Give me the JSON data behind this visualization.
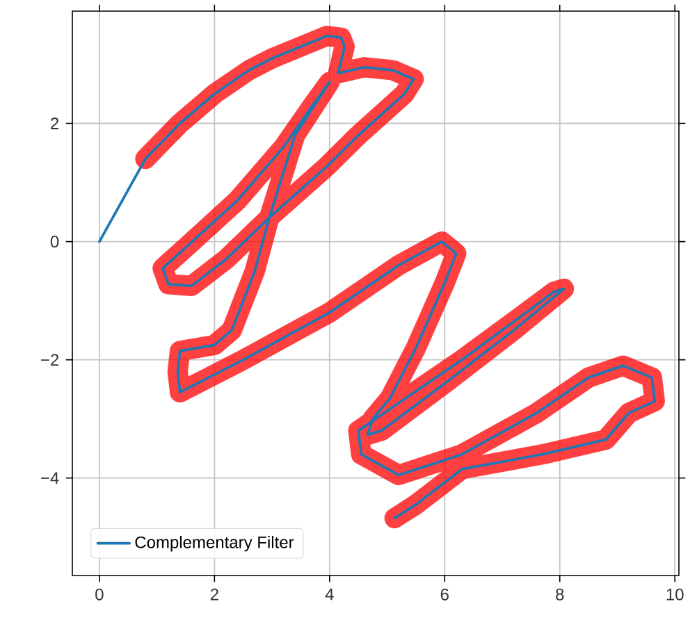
{
  "chart_data": {
    "type": "line",
    "series": [
      {
        "name": "Complementary Filter",
        "color": "#1f77b4",
        "x": [
          0,
          0.4,
          0.8,
          1.4,
          2.0,
          2.6,
          3.0,
          3.5,
          3.95,
          4.2,
          4.26,
          4.15,
          4.6,
          5.1,
          5.46,
          5.3,
          4.5,
          3.95,
          3.0,
          2.2,
          1.6,
          1.2,
          1.1,
          1.5,
          2.4,
          3.2,
          3.7,
          4.0,
          3.4,
          2.95,
          2.7,
          2.3,
          2.0,
          1.4,
          1.36,
          1.4,
          2.5,
          4.0,
          5.2,
          5.95,
          6.2,
          6.0,
          5.5,
          5.05,
          4.75,
          4.66,
          4.9,
          6.0,
          7.2,
          8.07,
          7.9,
          7.25,
          6.3,
          5.2,
          4.5,
          4.55,
          5.2,
          6.3,
          7.6,
          8.5,
          9.1,
          9.6,
          9.65,
          9.2,
          8.8,
          7.7,
          6.3,
          5.5,
          5.13
        ],
        "values": [
          0,
          0.7,
          1.4,
          2.0,
          2.5,
          2.9,
          3.1,
          3.3,
          3.48,
          3.45,
          3.3,
          2.85,
          2.95,
          2.9,
          2.75,
          2.5,
          1.8,
          1.27,
          0.45,
          -0.3,
          -0.75,
          -0.72,
          -0.45,
          -0.1,
          0.7,
          1.6,
          2.3,
          2.7,
          1.8,
          0.4,
          -0.5,
          -1.5,
          -1.75,
          -1.85,
          -2.2,
          -2.55,
          -2.0,
          -1.2,
          -0.4,
          0.0,
          -0.2,
          -0.7,
          -1.8,
          -2.65,
          -3.0,
          -3.27,
          -3.2,
          -2.4,
          -1.5,
          -0.8,
          -0.85,
          -1.32,
          -2.0,
          -2.73,
          -3.2,
          -3.6,
          -3.95,
          -3.6,
          -2.9,
          -2.3,
          -2.1,
          -2.3,
          -2.7,
          -2.9,
          -3.35,
          -3.6,
          -3.85,
          -4.45,
          -4.68
        ]
      },
      {
        "color": "#ff0000",
        "x": [
          0.8,
          1.4,
          2.0,
          2.6,
          3.0,
          3.5,
          3.95,
          4.2,
          4.26,
          4.15,
          4.6,
          5.1,
          5.46,
          5.3,
          4.5,
          3.95,
          3.0,
          2.2,
          1.6,
          1.2,
          1.1,
          1.5,
          2.4,
          3.2,
          3.7,
          4.0,
          3.4,
          2.95,
          2.7,
          2.3,
          2.0,
          1.4,
          1.36,
          1.4,
          2.5,
          4.0,
          5.2,
          5.95,
          6.2,
          6.0,
          5.5,
          5.05,
          4.75,
          4.66,
          4.9,
          6.0,
          7.2,
          8.07,
          7.9,
          7.25,
          6.3,
          5.2,
          4.5,
          4.55,
          5.2,
          6.3,
          7.6,
          8.5,
          9.1,
          9.6,
          9.65,
          9.2,
          8.8,
          7.7,
          6.3,
          5.5,
          5.13
        ],
        "values": [
          1.4,
          2.0,
          2.5,
          2.9,
          3.1,
          3.3,
          3.48,
          3.45,
          3.3,
          2.85,
          2.95,
          2.9,
          2.75,
          2.5,
          1.8,
          1.27,
          0.45,
          -0.3,
          -0.75,
          -0.72,
          -0.45,
          -0.1,
          0.7,
          1.6,
          2.3,
          2.7,
          1.8,
          0.4,
          -0.5,
          -1.5,
          -1.75,
          -1.85,
          -2.2,
          -2.55,
          -2.0,
          -1.2,
          -0.4,
          0.0,
          -0.2,
          -0.7,
          -1.8,
          -2.65,
          -3.0,
          -3.27,
          -3.2,
          -2.4,
          -1.5,
          -0.8,
          -0.85,
          -1.32,
          -2.0,
          -2.73,
          -3.2,
          -3.6,
          -3.95,
          -3.6,
          -2.9,
          -2.3,
          -2.1,
          -2.3,
          -2.7,
          -2.9,
          -3.35,
          -3.6,
          -3.85,
          -4.45,
          -4.68
        ]
      }
    ],
    "xlim": [
      -0.47,
      10.07
    ],
    "ylim": [
      -5.65,
      3.9
    ],
    "xticks": [
      0,
      2,
      4,
      6,
      8,
      10
    ],
    "yticks": [
      {
        "value": -4,
        "label": "−4"
      },
      {
        "value": -2,
        "label": "−2"
      },
      0,
      2
    ],
    "grid": true,
    "legend": "bottom left"
  }
}
